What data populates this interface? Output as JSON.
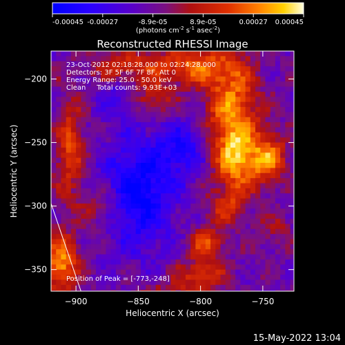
{
  "chart_data": {
    "type": "heatmap",
    "title": "Reconstructed RHESSI Image",
    "xlabel": "Heliocentric X (arcsec)",
    "ylabel": "Heliocentric Y (arcsec)",
    "xlim": [
      -920,
      -725
    ],
    "ylim": [
      -367,
      -178
    ],
    "xticks": [
      -900,
      -850,
      -800,
      -750
    ],
    "yticks": [
      -200,
      -250,
      -300,
      -350
    ],
    "colorbar": {
      "ticks": [
        "-0.00045",
        "-0.00027",
        "-8.9e-05",
        "8.9e-05",
        "0.00027",
        "0.00045"
      ],
      "unit_prefix": "(photons cm",
      "unit_exp1": "-2",
      "unit_mid": " s",
      "unit_exp2": "-1",
      "unit_mid2": " asec",
      "unit_exp3": "-2",
      "unit_suffix": ")",
      "range": [
        -0.00045,
        0.00045
      ]
    },
    "annotations": [
      "23-Oct-2012 02:18:28.000 to 02:24:28.000",
      "Detectors: 3F 5F 6F 7F 8F, Att 0",
      "Energy Range: 25.0 - 50.0 keV",
      "Clean     Total counts: 9.93E+03"
    ],
    "peak_label": "Position of Peak = [-773,-248]",
    "peak": [
      -773,
      -248
    ],
    "limb_line": [
      [
        -920,
        -298
      ],
      [
        -896,
        -367
      ]
    ],
    "sources": [
      {
        "x": -775,
        "y": -225,
        "amp": 0.0004,
        "sx": 14,
        "sy": 28
      },
      {
        "x": -770,
        "y": -265,
        "amp": 0.00035,
        "sx": 12,
        "sy": 16
      },
      {
        "x": -745,
        "y": -262,
        "amp": 0.00034,
        "sx": 10,
        "sy": 14
      },
      {
        "x": -795,
        "y": -330,
        "amp": 0.00028,
        "sx": 10,
        "sy": 10
      },
      {
        "x": -778,
        "y": -300,
        "amp": 0.00024,
        "sx": 10,
        "sy": 9
      },
      {
        "x": -800,
        "y": -355,
        "amp": 0.00026,
        "sx": 14,
        "sy": 8
      },
      {
        "x": -905,
        "y": -255,
        "amp": 0.00028,
        "sx": 8,
        "sy": 26
      },
      {
        "x": -912,
        "y": -345,
        "amp": 0.00042,
        "sx": 9,
        "sy": 16
      },
      {
        "x": -880,
        "y": -300,
        "amp": 0.00018,
        "sx": 12,
        "sy": 12
      },
      {
        "x": -805,
        "y": -190,
        "amp": 0.0003,
        "sx": 22,
        "sy": 10
      },
      {
        "x": -860,
        "y": -190,
        "amp": 0.00022,
        "sx": 20,
        "sy": 9
      },
      {
        "x": -840,
        "y": -215,
        "amp": 0.0002,
        "sx": 14,
        "sy": 10
      },
      {
        "x": -740,
        "y": -320,
        "amp": 0.00012,
        "sx": 10,
        "sy": 10
      },
      {
        "x": -825,
        "y": -370,
        "amp": 0.00015,
        "sx": 20,
        "sy": 6
      }
    ],
    "background": -0.0001,
    "dips": [
      {
        "x": -850,
        "y": -290,
        "amp": -0.00035,
        "sx": 20,
        "sy": 30
      },
      {
        "x": -815,
        "y": -255,
        "amp": -0.00022,
        "sx": 14,
        "sy": 16
      },
      {
        "x": -865,
        "y": -215,
        "amp": -0.00018,
        "sx": 12,
        "sy": 10
      }
    ]
  },
  "footer": {
    "timestamp": "15-May-2022 13:04"
  }
}
